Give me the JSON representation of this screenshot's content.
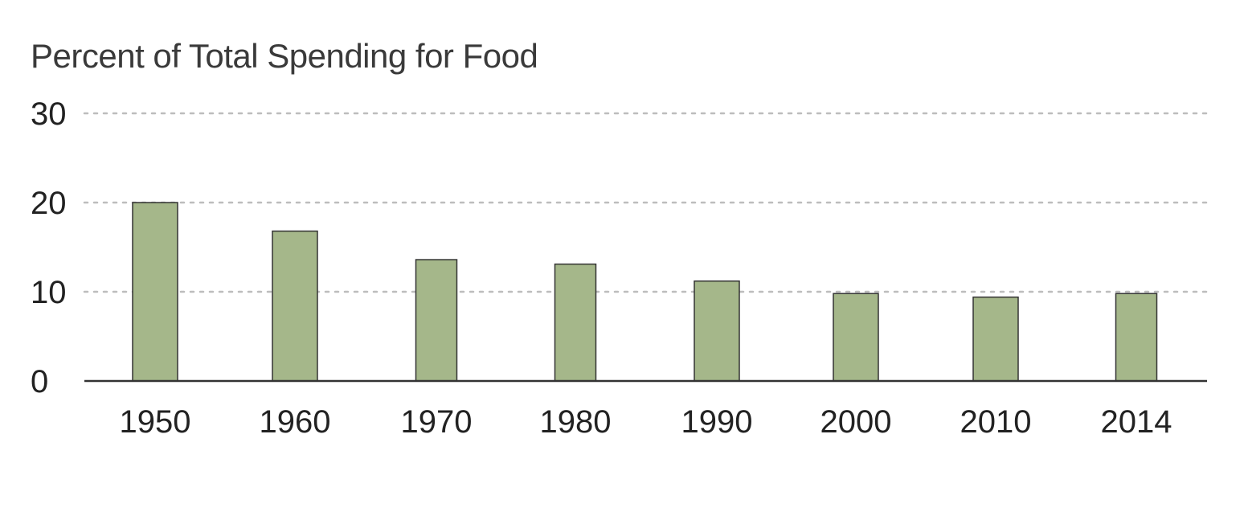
{
  "chart_data": {
    "type": "bar",
    "title": "Percent of Total Spending for Food",
    "xlabel": "",
    "ylabel": "",
    "categories": [
      "1950",
      "1960",
      "1970",
      "1980",
      "1990",
      "2000",
      "2010",
      "2014"
    ],
    "values": [
      20.0,
      16.8,
      13.6,
      13.1,
      11.2,
      9.8,
      9.4,
      9.8
    ],
    "ylim": [
      0,
      30
    ],
    "yticks": [
      "0",
      "10",
      "20",
      "30"
    ],
    "grid": true,
    "legend": "none",
    "colors": {
      "bar_fill": "#a5b78a",
      "bar_stroke": "#333333",
      "axis": "#333333",
      "grid": "#bdbdbd"
    }
  }
}
